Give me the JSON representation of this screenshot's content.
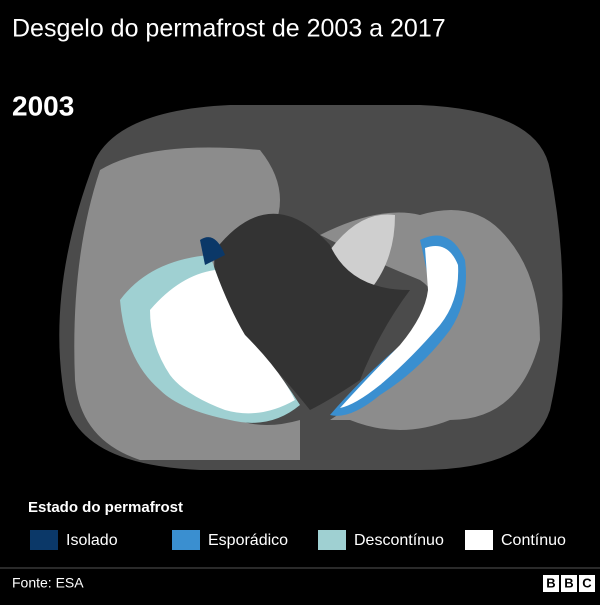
{
  "header": {
    "title": "Desgelo do permafrost de 2003 a 2017"
  },
  "map": {
    "year": "2003"
  },
  "legend": {
    "title": "Estado do permafrost",
    "items": [
      {
        "label": "Isolado",
        "color": "#0b3868"
      },
      {
        "label": "Esporádico",
        "color": "#3a8fd0"
      },
      {
        "label": "Descontínuo",
        "color": "#9fd0d2"
      },
      {
        "label": "Contínuo",
        "color": "#ffffff"
      }
    ]
  },
  "footer": {
    "source": "Fonte: ESA",
    "logo": [
      "B",
      "B",
      "C"
    ]
  }
}
